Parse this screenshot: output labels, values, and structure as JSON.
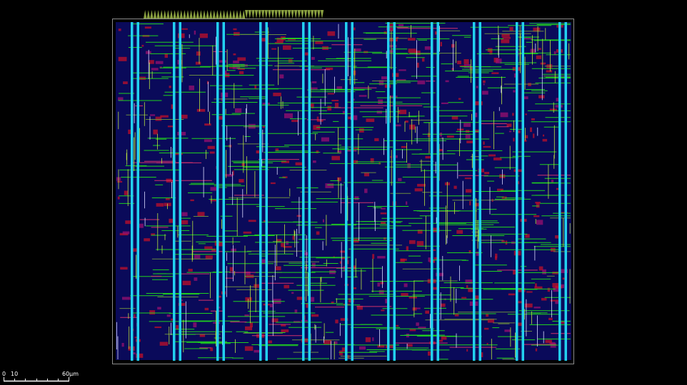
{
  "scale_bar": {
    "labels": [
      "0",
      "10",
      "60µm"
    ]
  }
}
